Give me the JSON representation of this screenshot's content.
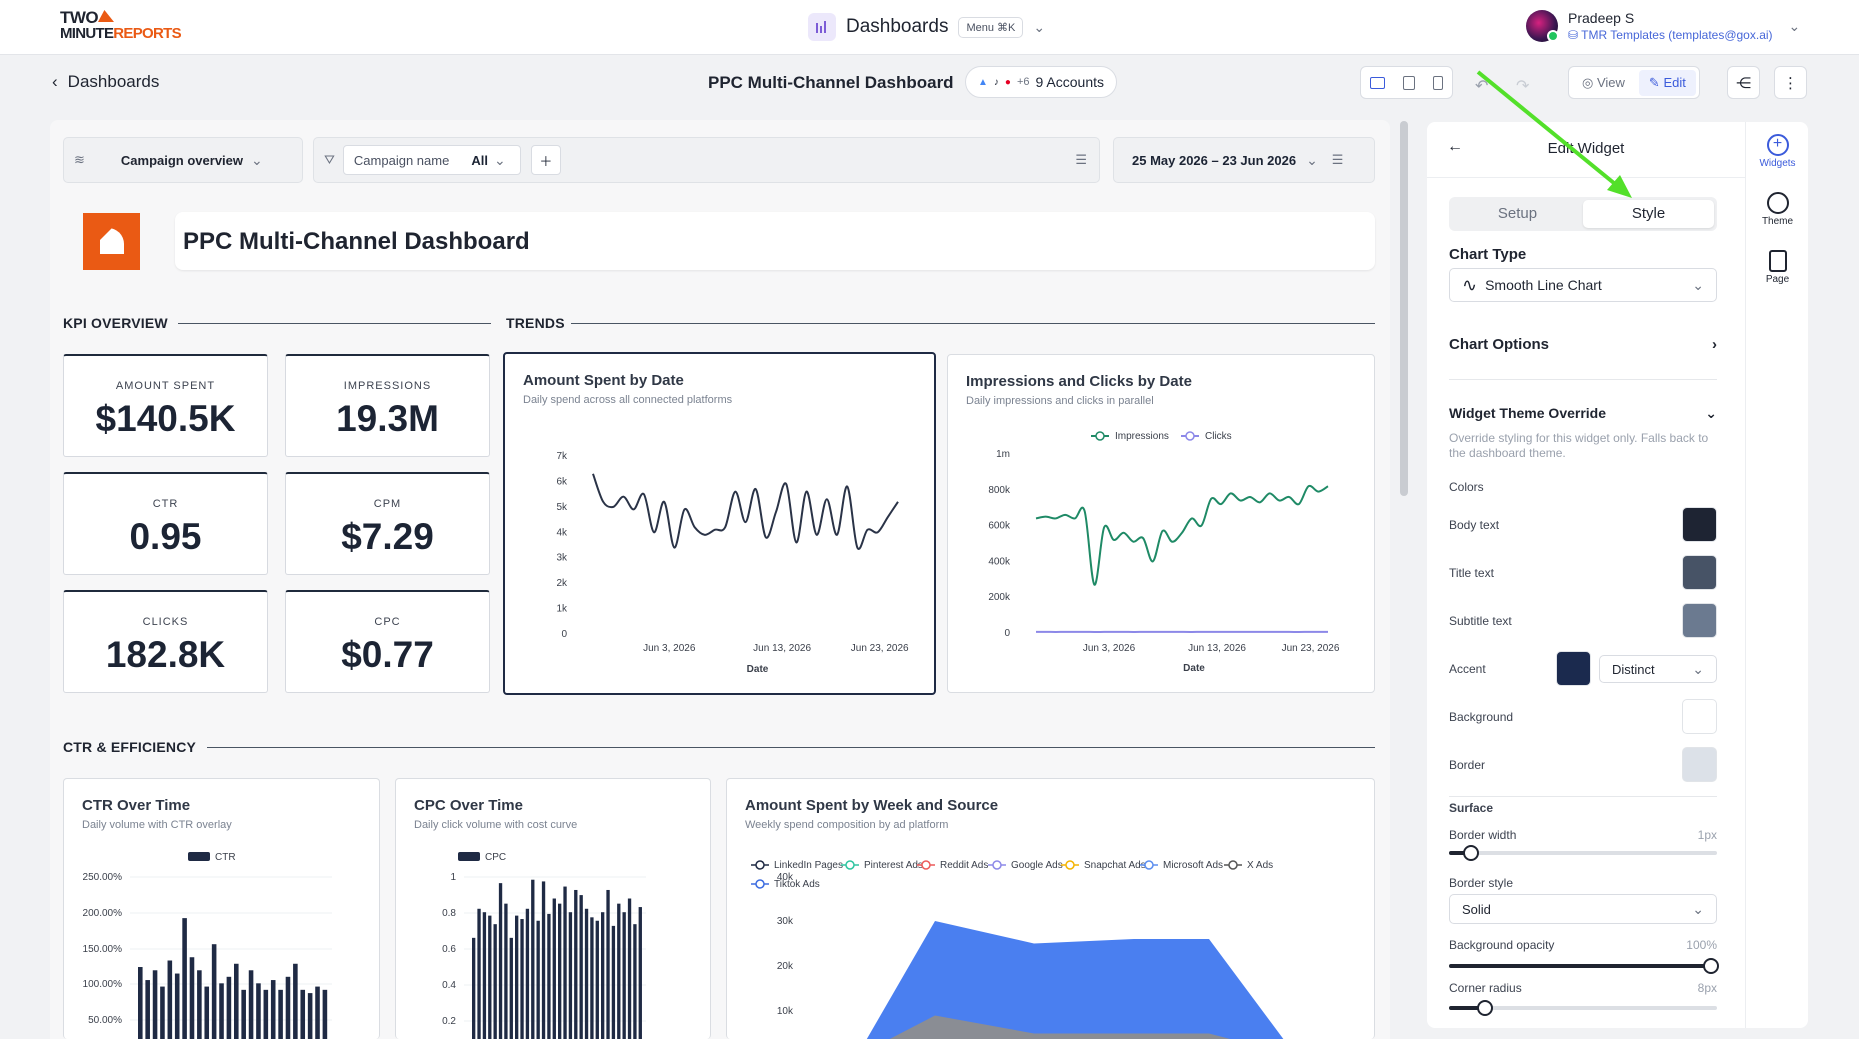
{
  "topbar": {
    "logo_line1": "TWO",
    "logo_line2a": "MINUTE",
    "logo_line2b": "REPORTS",
    "title": "Dashboards",
    "menu_label": "Menu ⌘K",
    "user_name": "Pradeep S",
    "user_email": "TMR Templates (templates@gox.ai)"
  },
  "subheader": {
    "back_label": "Dashboards",
    "dashboard_name": "PPC Multi-Channel Dashboard",
    "accounts_more": "+6",
    "accounts_label": "9  Accounts",
    "view_label": "View",
    "edit_label": "Edit"
  },
  "filters": {
    "preset": "Campaign overview",
    "field": "Campaign name",
    "field_value": "All",
    "date_range": "25 May 2026 – 23 Jun 2026"
  },
  "header_card": {
    "title": "PPC Multi-Channel Dashboard"
  },
  "sections": {
    "kpi": "KPI OVERVIEW",
    "trends": "TRENDS",
    "ctr": "CTR & EFFICIENCY"
  },
  "kpis": [
    {
      "label": "AMOUNT SPENT",
      "value": "$140.5K"
    },
    {
      "label": "IMPRESSIONS",
      "value": "19.3M"
    },
    {
      "label": "CTR",
      "value": "0.95"
    },
    {
      "label": "CPM",
      "value": "$7.29"
    },
    {
      "label": "CLICKS",
      "value": "182.8K"
    },
    {
      "label": "CPC",
      "value": "$0.77"
    }
  ],
  "charts": {
    "spent": {
      "title": "Amount Spent by Date",
      "subtitle": "Daily spend across all connected platforms"
    },
    "impr": {
      "title": "Impressions and Clicks by Date",
      "subtitle": "Daily impressions and clicks in parallel"
    },
    "ctr": {
      "title": "CTR Over Time",
      "subtitle": "Daily volume with CTR overlay"
    },
    "cpc": {
      "title": "CPC Over Time",
      "subtitle": "Daily click volume with cost curve"
    },
    "week": {
      "title": "Amount Spent by Week and Source",
      "subtitle": "Weekly spend composition by ad platform"
    }
  },
  "chart_data": [
    {
      "type": "line",
      "title": "Amount Spent by Date",
      "xlabel": "Date",
      "x_ticks": [
        "Jun 3, 2026",
        "Jun 13, 2026",
        "Jun 23, 2026"
      ],
      "y_ticks": [
        "0",
        "1k",
        "2k",
        "3k",
        "4k",
        "5k",
        "6k",
        "7k"
      ],
      "ylim": [
        0,
        7000
      ],
      "values": [
        6300,
        5200,
        5000,
        5400,
        4900,
        5500,
        4000,
        5200,
        3400,
        4900,
        4200,
        3900,
        4100,
        4200,
        5600,
        4400,
        5700,
        3800,
        4800,
        5900,
        3600,
        5600,
        3900,
        5300,
        3900,
        5800,
        3400,
        4100,
        4000,
        4600,
        5200
      ]
    },
    {
      "type": "line",
      "title": "Impressions and Clicks by Date",
      "xlabel": "Date",
      "x_ticks": [
        "Jun 3, 2026",
        "Jun 13, 2026",
        "Jun 23, 2026"
      ],
      "y_ticks": [
        "0",
        "200k",
        "400k",
        "600k",
        "800k",
        "1m"
      ],
      "ylim": [
        0,
        1000000
      ],
      "series": [
        {
          "name": "Impressions",
          "values": [
            640000,
            650000,
            640000,
            660000,
            640000,
            680000,
            270000,
            590000,
            520000,
            560000,
            510000,
            530000,
            400000,
            570000,
            510000,
            560000,
            640000,
            600000,
            750000,
            720000,
            780000,
            740000,
            760000,
            730000,
            780000,
            740000,
            760000,
            720000,
            820000,
            790000,
            820000
          ]
        },
        {
          "name": "Clicks",
          "values": [
            6000,
            6200,
            5900,
            6100,
            6000,
            6300,
            5800,
            6000,
            6100,
            6200,
            5900,
            6000,
            6100,
            6300,
            6200,
            6000,
            5900,
            6100,
            6200,
            6000,
            6100,
            6300,
            6200,
            6000,
            6100,
            6200,
            6000,
            5900,
            6100,
            6200,
            6000
          ]
        }
      ]
    },
    {
      "type": "bar",
      "title": "CTR Over Time",
      "series": [
        {
          "name": "CTR",
          "values": [
            115,
            95,
            110,
            85,
            125,
            105,
            190,
            130,
            110,
            85,
            150,
            90,
            100,
            120,
            80,
            110,
            90,
            80,
            95,
            80,
            100,
            120,
            80,
            75,
            85,
            80
          ]
        }
      ],
      "y_ticks": [
        "50.00%",
        "100.00%",
        "150.00%",
        "200.00%",
        "250.00%"
      ],
      "ylim": [
        0,
        250
      ]
    },
    {
      "type": "bar",
      "title": "CPC Over Time",
      "series": [
        {
          "name": "CPC",
          "values": [
            0.65,
            0.82,
            0.8,
            0.78,
            0.73,
            0.97,
            0.85,
            0.65,
            0.78,
            0.76,
            0.82,
            0.99,
            0.75,
            0.98,
            0.79,
            0.88,
            0.85,
            0.95,
            0.8,
            0.93,
            0.9,
            0.82,
            0.77,
            0.75,
            0.8,
            0.93,
            0.72,
            0.85,
            0.8,
            0.88,
            0.73,
            0.83
          ]
        }
      ],
      "y_ticks": [
        "0.2",
        "0.4",
        "0.6",
        "0.8",
        "1"
      ],
      "ylim": [
        0,
        1
      ]
    },
    {
      "type": "area",
      "title": "Amount Spent by Week and Source",
      "legend": [
        "LinkedIn Pages",
        "Pinterest Ads",
        "Reddit Ads",
        "Google Ads",
        "Snapchat Ads",
        "Microsoft Ads",
        "X Ads",
        "Tiktok Ads"
      ],
      "y_ticks": [
        "10k",
        "20k",
        "30k",
        "40k"
      ],
      "series": [
        {
          "name": "Tiktok Ads",
          "values": [
            0,
            30000,
            25000,
            26000,
            26000,
            0
          ]
        },
        {
          "name": "X Ads",
          "values": [
            0,
            9000,
            5000,
            5000,
            5000,
            0
          ]
        }
      ]
    }
  ],
  "panel": {
    "title": "Edit Widget",
    "tab_setup": "Setup",
    "tab_style": "Style",
    "chart_type_h": "Chart Type",
    "chart_type_value": "Smooth Line Chart",
    "chart_options": "Chart Options",
    "override_h": "Widget Theme Override",
    "override_desc": "Override styling for this widget only. Falls back to the dashboard theme.",
    "colors_h": "Colors",
    "body_text": "Body text",
    "title_text": "Title text",
    "subtitle_text": "Subtitle text",
    "accent": "Accent",
    "accent_mode": "Distinct",
    "background": "Background",
    "border": "Border",
    "surface_h": "Surface",
    "border_width": "Border width",
    "border_width_val": "1px",
    "border_style": "Border style",
    "border_style_val": "Solid",
    "bg_opacity": "Background opacity",
    "bg_opacity_val": "100%",
    "corner_radius": "Corner radius",
    "corner_radius_val": "8px",
    "swatches": {
      "body": "#1e2433",
      "title": "#475366",
      "subtitle": "#6b7a90",
      "accent": "#1b2a4e",
      "background": "#ffffff",
      "border": "#dce1e8"
    }
  },
  "rail": {
    "widgets": "Widgets",
    "theme": "Theme",
    "page": "Page"
  }
}
